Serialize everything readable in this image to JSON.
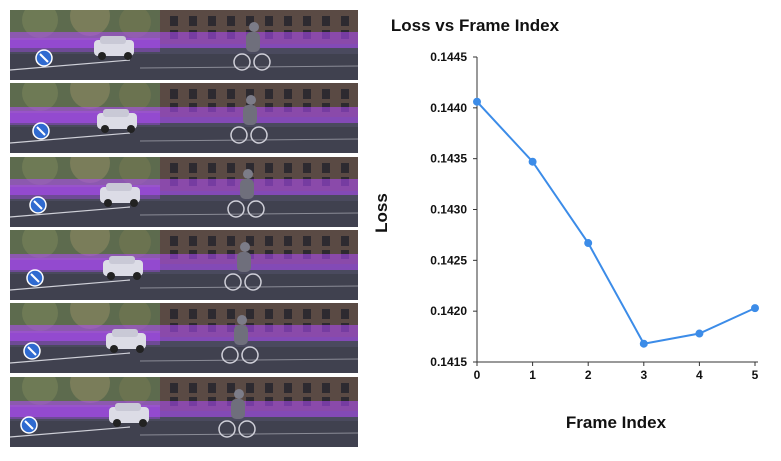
{
  "frames": {
    "count": 6,
    "icon": "pedestrian-arrow-sign-icon",
    "overlay_color": "#b24bff"
  },
  "chart_data": {
    "type": "line",
    "title": "Loss vs Frame Index",
    "xlabel": "Frame Index",
    "ylabel": "Loss",
    "x": [
      0,
      1,
      2,
      3,
      4,
      5
    ],
    "series": [
      {
        "values": [
          0.14406,
          0.14347,
          0.14267,
          0.14168,
          0.14178,
          0.14203
        ],
        "color": "#3c8ce8"
      }
    ],
    "xticks": [
      "0",
      "1",
      "2",
      "3",
      "4",
      "5"
    ],
    "yticks": [
      "0.1415",
      "0.1420",
      "0.1425",
      "0.1430",
      "0.1435",
      "0.1440",
      "0.1445"
    ],
    "ylim": [
      0.1415,
      0.1445
    ],
    "xlim": [
      0,
      5
    ],
    "grid": false,
    "legend": "none"
  }
}
